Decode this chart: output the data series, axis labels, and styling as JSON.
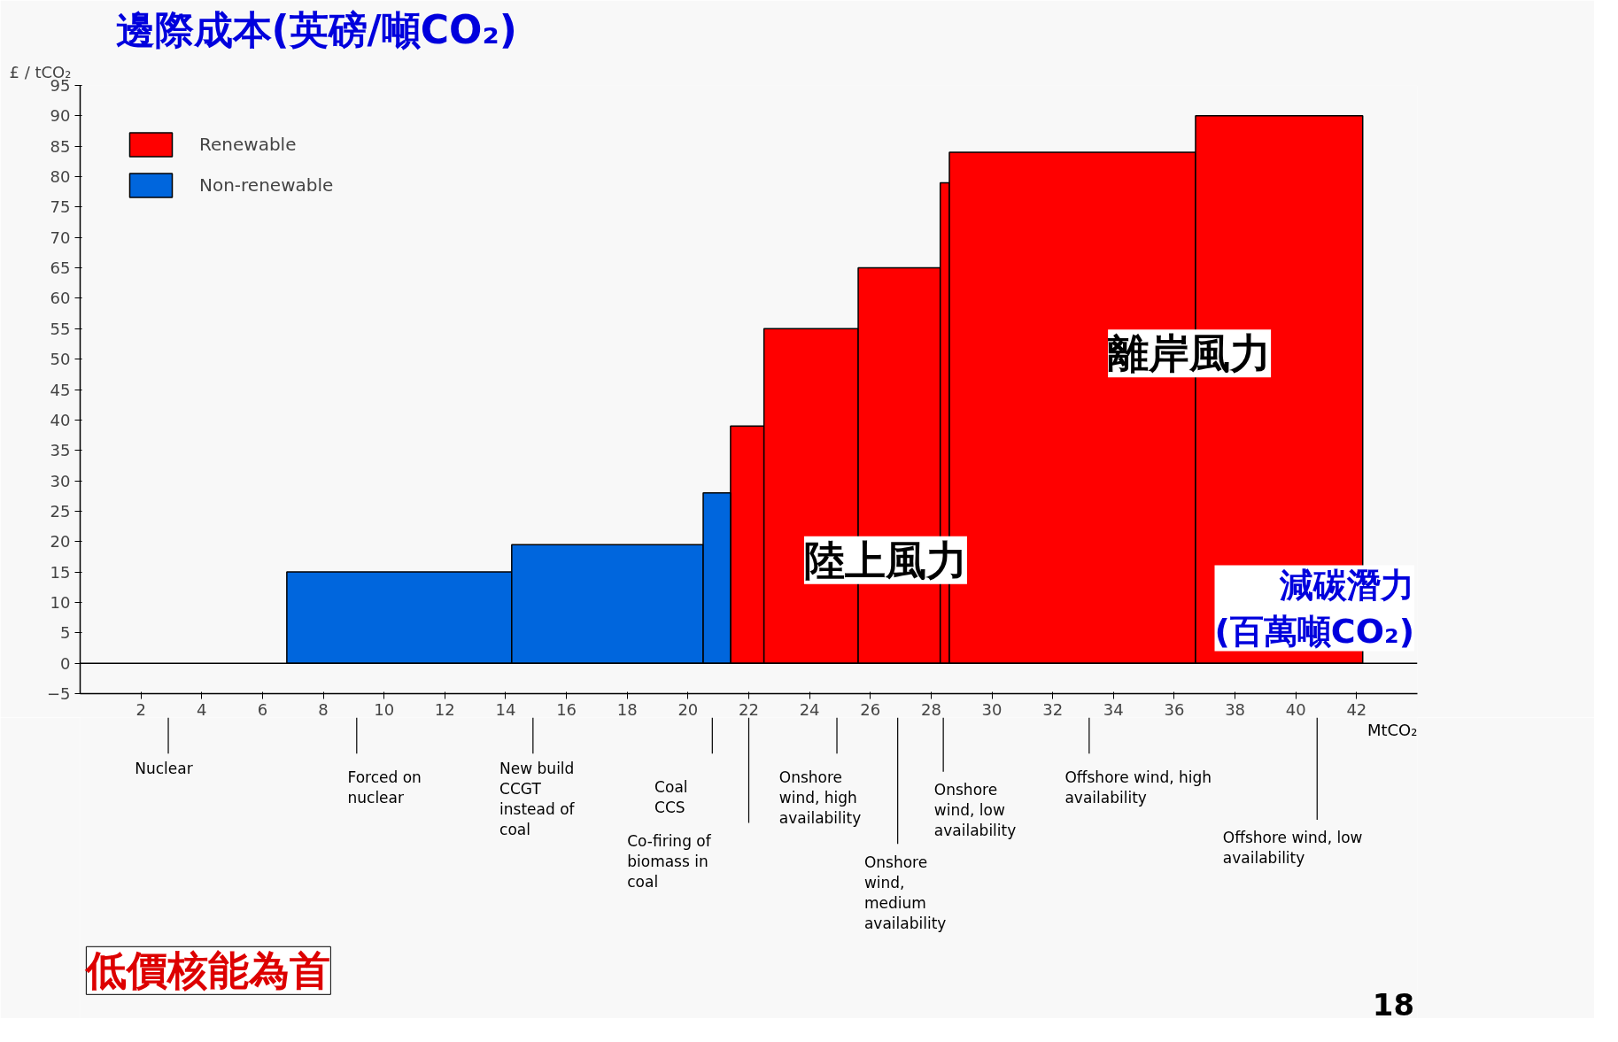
{
  "chart_data": {
    "type": "histogram",
    "title": "邊際成本(英磅/噸CO₂)",
    "ylabel": "£ / tCO₂",
    "xlabel": "MtCO₂",
    "bins": [
      6.8,
      14.2,
      20.5,
      21.4,
      22.5,
      25.6,
      28.3,
      28.6,
      36.7,
      42.2
    ],
    "series": [
      {
        "name": "Renewable",
        "color": "#ff0000",
        "values": [
          null,
          null,
          null,
          39,
          55,
          65,
          79,
          84,
          90
        ]
      },
      {
        "name": "Non-renewable",
        "color": "#0066dd",
        "values": [
          15,
          19.5,
          28,
          null,
          null,
          null,
          null,
          null,
          null
        ]
      }
    ],
    "xlim": [
      0,
      44
    ],
    "xticks": [
      2,
      4,
      6,
      8,
      10,
      12,
      14,
      16,
      18,
      20,
      22,
      24,
      26,
      28,
      30,
      32,
      34,
      36,
      38,
      40,
      42
    ],
    "ylim": [
      -5,
      95
    ],
    "yticks": [
      -5,
      0,
      5,
      10,
      15,
      20,
      25,
      30,
      35,
      40,
      45,
      50,
      55,
      60,
      65,
      70,
      75,
      80,
      85,
      90,
      95
    ],
    "ref_lines": [
      {
        "axis": "y",
        "value": 0,
        "color": "#000000"
      }
    ],
    "legend": "top left",
    "annotations": [
      "Nuclear",
      "Forced on\nnuclear",
      "New build\nCCGT\ninstead of\ncoal",
      "Coal\nCCS",
      "Co-firing of\nbiomass in\ncoal",
      "Onshore\nwind, high\navailability",
      "Onshore\nwind,\nmedium\navailability",
      "Onshore\nwind, low\navailability",
      "Offshore wind, high\navailability",
      "Offshore wind, low\navailability",
      "陸上風力",
      "離岸風力",
      "減碳潛力\n(百萬噸CO₂)",
      "低價核能為首",
      "18"
    ]
  }
}
